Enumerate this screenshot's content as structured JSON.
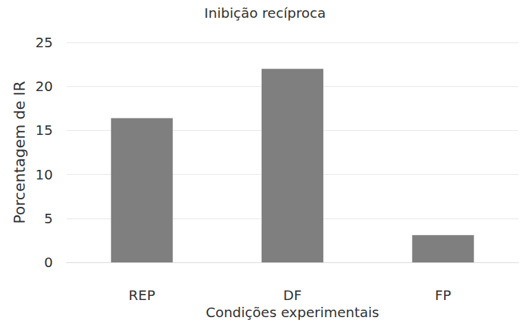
{
  "chart_data": {
    "type": "bar",
    "title": "Inibição recíproca",
    "x_label": "Condições experimentais",
    "y_label": "Porcentagem de IR",
    "categories": [
      "REP",
      "DF",
      "FP"
    ],
    "values": [
      16.4,
      22,
      3.1
    ],
    "color": "#7f7f7f",
    "ylim": [
      0,
      25
    ],
    "yticks": [
      0,
      5,
      10,
      15,
      20,
      25
    ],
    "grid": true
  }
}
